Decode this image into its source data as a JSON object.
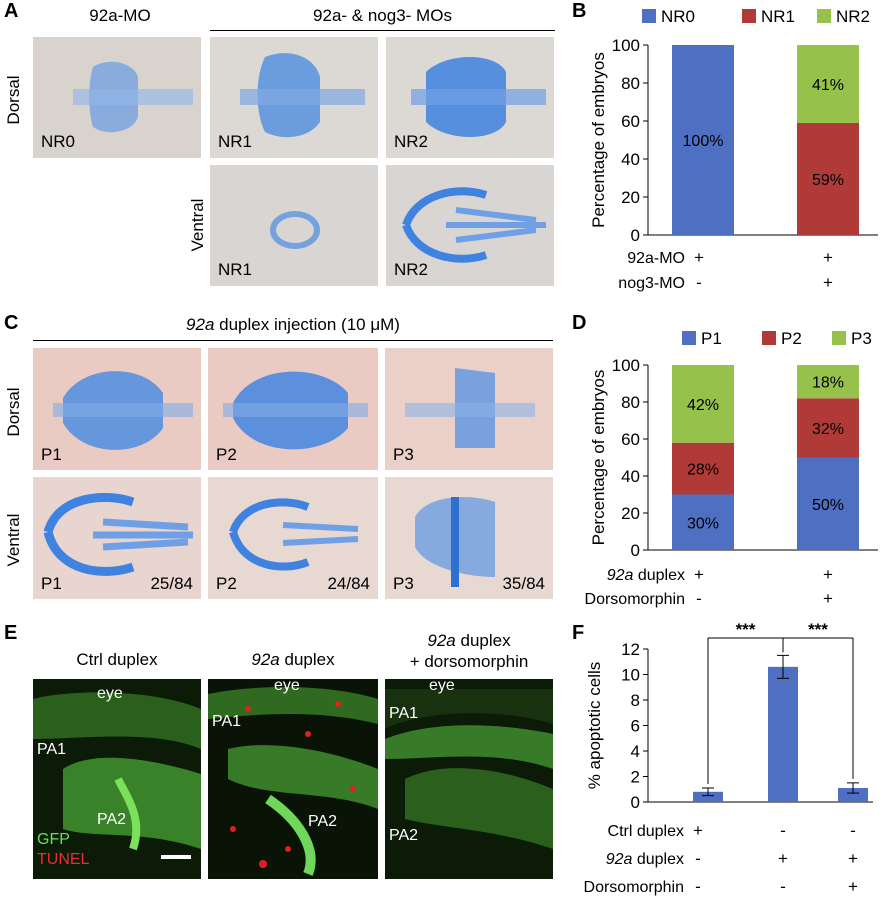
{
  "panels": {
    "A": {
      "label": "A",
      "header_left": "92a-MO",
      "header_right": "92a- & nog3- MOs",
      "row_dorsal": "Dorsal",
      "row_ventral": "Ventral",
      "images": [
        {
          "label": "NR0"
        },
        {
          "label": "NR1"
        },
        {
          "label": "NR2"
        },
        {
          "label": "NR1"
        },
        {
          "label": "NR2"
        }
      ]
    },
    "C": {
      "label": "C",
      "header_italic": "92a",
      "header_rest": " duplex injection (10 μM)",
      "row_dorsal": "Dorsal",
      "row_ventral": "Ventral",
      "images": [
        {
          "label": "P1",
          "count": ""
        },
        {
          "label": "P2",
          "count": ""
        },
        {
          "label": "P3",
          "count": ""
        },
        {
          "label": "P1",
          "count": "25/84"
        },
        {
          "label": "P2",
          "count": "24/84"
        },
        {
          "label": "P3",
          "count": "35/84"
        }
      ]
    },
    "E": {
      "label": "E",
      "headers": [
        {
          "italic": "",
          "rest": "Ctrl duplex",
          "line2": ""
        },
        {
          "italic": "92a",
          "rest": " duplex",
          "line2": ""
        },
        {
          "italic": "92a",
          "rest": " duplex",
          "line2": "+ dorsomorphin"
        }
      ],
      "images": [
        {
          "labels": [
            "eye",
            "PA1",
            "PA2"
          ]
        },
        {
          "labels": [
            "eye",
            "PA1",
            "PA2"
          ]
        },
        {
          "labels": [
            "eye",
            "PA1",
            "PA2"
          ]
        }
      ],
      "legend_gfp": "GFP",
      "legend_tunel": "TUNEL"
    },
    "B": {
      "label": "B"
    },
    "D": {
      "label": "D"
    },
    "F": {
      "label": "F"
    }
  },
  "colors": {
    "blue": "#4f6fc2",
    "red": "#b03a38",
    "green": "#96c14a"
  },
  "chart_data": [
    {
      "id": "B",
      "type": "bar",
      "stacked": true,
      "ylabel": "Percentage of embryos",
      "ylim": [
        0,
        100
      ],
      "yticks": [
        "0",
        "20",
        "40",
        "60",
        "80",
        "100"
      ],
      "legend": [
        "NR0",
        "NR1",
        "NR2"
      ],
      "series": [
        {
          "name": "NR0",
          "values": [
            100,
            0
          ],
          "labels": [
            "100%",
            ""
          ]
        },
        {
          "name": "NR1",
          "values": [
            0,
            59
          ],
          "labels": [
            "",
            "59%"
          ]
        },
        {
          "name": "NR2",
          "values": [
            0,
            41
          ],
          "labels": [
            "",
            "41%"
          ]
        }
      ],
      "conditions": [
        {
          "name": "92a-MO",
          "values": [
            "+",
            "+"
          ]
        },
        {
          "name": "nog3-MO",
          "values": [
            "-",
            "+"
          ]
        }
      ]
    },
    {
      "id": "D",
      "type": "bar",
      "stacked": true,
      "ylabel": "Percentage of embryos",
      "ylim": [
        0,
        100
      ],
      "yticks": [
        "0",
        "20",
        "40",
        "60",
        "80",
        "100"
      ],
      "legend": [
        "P1",
        "P2",
        "P3"
      ],
      "series": [
        {
          "name": "P1",
          "values": [
            30,
            50
          ],
          "labels": [
            "30%",
            "50%"
          ]
        },
        {
          "name": "P2",
          "values": [
            28,
            32
          ],
          "labels": [
            "28%",
            "32%"
          ]
        },
        {
          "name": "P3",
          "values": [
            42,
            18
          ],
          "labels": [
            "42%",
            "18%"
          ]
        }
      ],
      "conditions": [
        {
          "name_italic": "92a",
          "name": " duplex",
          "values": [
            "+",
            "+"
          ]
        },
        {
          "name_italic": "",
          "name": "Dorsomorphin",
          "values": [
            "-",
            "+"
          ]
        }
      ]
    },
    {
      "id": "F",
      "type": "bar",
      "ylabel": "% apoptotic cells",
      "ylim": [
        0,
        12
      ],
      "yticks": [
        "0",
        "2",
        "4",
        "6",
        "8",
        "10",
        "12"
      ],
      "values": [
        0.8,
        10.6,
        1.1
      ],
      "errors": [
        0.3,
        0.9,
        0.4
      ],
      "significance": [
        "***",
        "***"
      ],
      "conditions": [
        {
          "name_italic": "",
          "name": "Ctrl duplex",
          "values": [
            "+",
            "-",
            "-"
          ]
        },
        {
          "name_italic": "92a",
          "name": " duplex",
          "values": [
            "-",
            "+",
            "+"
          ]
        },
        {
          "name_italic": "",
          "name": "Dorsomorphin",
          "values": [
            "-",
            "-",
            "+"
          ]
        }
      ]
    }
  ]
}
